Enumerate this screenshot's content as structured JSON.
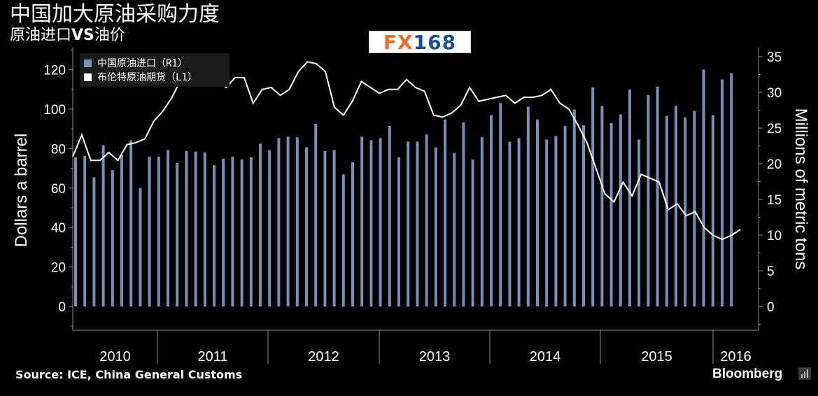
{
  "header": {
    "title": "中国加大原油采购力度",
    "subtitle_part1": "原油进口",
    "subtitle_vs": "VS",
    "subtitle_part2": "油价"
  },
  "logo": {
    "fx": "FX",
    "num": "168"
  },
  "footer": {
    "source": "Source: ICE, China General Customs",
    "brand": "Bloomberg"
  },
  "colors": {
    "background": "#000000",
    "bar": "#7b8fb6",
    "line": "#ffffff",
    "legend_bg": "#1b1b1b",
    "axis": "#8a8a8a",
    "logo_orange": "#ee6b2f",
    "logo_blue": "#1d4f8c"
  },
  "chart_data": {
    "type": "bar",
    "left_axis": {
      "label": "Dollars a barrel",
      "min": -10,
      "max": 130,
      "ticks": [
        0,
        20,
        40,
        60,
        80,
        100,
        120
      ]
    },
    "right_axis": {
      "label": "Millions of metric tons",
      "min": -3.5,
      "max": 36,
      "ticks": [
        0,
        5,
        10,
        15,
        20,
        25,
        30,
        35
      ]
    },
    "x_axis": {
      "years": [
        "2010",
        "2011",
        "2012",
        "2013",
        "2014",
        "2015",
        "2016"
      ]
    },
    "legend_position": "top-left",
    "series": [
      {
        "name": "中国原油进口（R1）",
        "type": "bar",
        "axis": "right",
        "values": [
          20.9,
          21.1,
          18.1,
          22.6,
          19.1,
          21.3,
          23.3,
          16.6,
          21.0,
          21.0,
          21.9,
          20.1,
          21.8,
          21.7,
          21.6,
          19.8,
          20.7,
          21.0,
          20.6,
          20.9,
          22.8,
          21.9,
          23.6,
          23.8,
          23.7,
          22.3,
          25.6,
          21.8,
          21.9,
          18.5,
          20.2,
          23.8,
          23.3,
          23.6,
          25.3,
          20.9,
          23.1,
          23.1,
          24.1,
          22.3,
          26.2,
          21.5,
          25.8,
          20.6,
          23.7,
          26.8,
          28.5,
          23.1,
          23.6,
          28.0,
          26.2,
          23.4,
          23.9,
          25.3,
          27.6,
          25.4,
          30.7,
          28.1,
          25.7,
          26.9,
          30.4,
          23.4,
          29.6,
          30.8,
          26.7,
          28.1,
          26.5,
          27.4,
          33.2,
          26.8,
          31.8,
          32.7
        ]
      },
      {
        "name": "布伦特原油期货（L1）",
        "type": "line",
        "axis": "left",
        "values": [
          76,
          87,
          74,
          74,
          78,
          74,
          82,
          83,
          85,
          94,
          99,
          106,
          115,
          113,
          117,
          123,
          115,
          111,
          116,
          116,
          103,
          110,
          111,
          107,
          110,
          119,
          124,
          123,
          119,
          101,
          97,
          104,
          114,
          111,
          108,
          110,
          110,
          115,
          111,
          109,
          97,
          96,
          98,
          102,
          111,
          104,
          105,
          106,
          107,
          103,
          106,
          106,
          107,
          110,
          103,
          100,
          92,
          83,
          70,
          57,
          53,
          63,
          56,
          67,
          65,
          63,
          49,
          52,
          46,
          48,
          40,
          36,
          34,
          36,
          39
        ]
      }
    ]
  }
}
